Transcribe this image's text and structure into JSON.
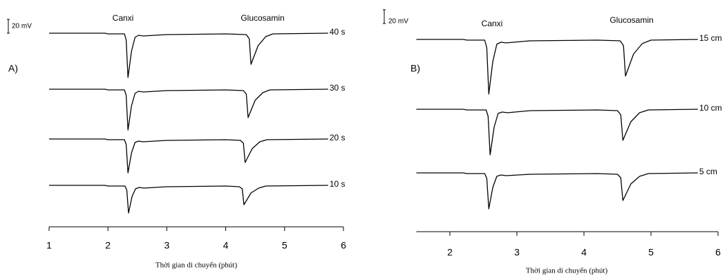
{
  "chart_data": [
    {
      "type": "line",
      "panel_label": "A)",
      "annotations": [
        "Canxi",
        "Glucosamin"
      ],
      "xlabel": "Thời gian di chuyển (phút)",
      "xlim": [
        1,
        6
      ],
      "xticks": [
        1,
        2,
        3,
        4,
        5,
        6
      ],
      "scale_bar": {
        "value": 20,
        "label": "20 mV"
      },
      "color": "#000000",
      "series": [
        {
          "name": "40 s",
          "x": [
            1.0,
            1.95,
            2.0,
            2.28,
            2.31,
            2.34,
            2.4,
            2.46,
            2.52,
            2.6,
            3.0,
            4.0,
            4.35,
            4.4,
            4.43,
            4.55,
            4.68,
            4.8,
            5.74
          ],
          "values": [
            0,
            0,
            -1,
            -1,
            -10,
            -64,
            -26,
            -6,
            -3,
            -4,
            -2,
            -1,
            -2,
            -8,
            -45,
            -18,
            -5,
            -1,
            0
          ]
        },
        {
          "name": "30 s",
          "x": [
            1.0,
            1.95,
            2.0,
            2.28,
            2.31,
            2.34,
            2.4,
            2.46,
            2.52,
            2.6,
            3.0,
            4.0,
            4.3,
            4.35,
            4.38,
            4.5,
            4.63,
            4.75,
            5.74
          ],
          "values": [
            0,
            0,
            -1,
            -1,
            -9,
            -59,
            -24,
            -6,
            -3,
            -4,
            -2,
            -1,
            -2,
            -7,
            -41,
            -16,
            -5,
            -1,
            0
          ]
        },
        {
          "name": "20 s",
          "x": [
            1.0,
            1.95,
            2.0,
            2.28,
            2.31,
            2.34,
            2.4,
            2.46,
            2.52,
            2.6,
            3.0,
            4.0,
            4.25,
            4.3,
            4.33,
            4.45,
            4.58,
            4.7,
            5.74
          ],
          "values": [
            0,
            0,
            -1,
            -1,
            -8,
            -49,
            -20,
            -5,
            -3,
            -4,
            -2,
            -1,
            -2,
            -6,
            -34,
            -14,
            -4,
            -1,
            0
          ]
        },
        {
          "name": "10 s",
          "x": [
            1.0,
            1.95,
            2.0,
            2.29,
            2.32,
            2.35,
            2.41,
            2.47,
            2.53,
            2.61,
            3.0,
            4.0,
            4.23,
            4.28,
            4.31,
            4.43,
            4.56,
            4.68,
            5.74
          ],
          "values": [
            0,
            0,
            -1,
            -1,
            -7,
            -40,
            -16,
            -5,
            -3,
            -4,
            -2,
            -1,
            -2,
            -5,
            -28,
            -11,
            -4,
            -1,
            0
          ]
        }
      ]
    },
    {
      "type": "line",
      "panel_label": "B)",
      "annotations": [
        "Canxi",
        "Glucosamin"
      ],
      "xlabel": "Thời gian di chuyển (phút)",
      "xlim": [
        1.5,
        6
      ],
      "xticks": [
        2,
        3,
        4,
        5,
        6
      ],
      "scale_bar": {
        "value": 20,
        "label": "20 mV"
      },
      "color": "#000000",
      "series": [
        {
          "name": "15 cm",
          "x": [
            1.5,
            2.2,
            2.25,
            2.52,
            2.55,
            2.58,
            2.64,
            2.7,
            2.76,
            2.84,
            3.2,
            4.2,
            4.54,
            4.59,
            4.62,
            4.74,
            4.87,
            5.0,
            5.7
          ],
          "values": [
            0,
            0,
            -1,
            -1,
            -12,
            -79,
            -32,
            -7,
            -4,
            -5,
            -2,
            -1,
            -2,
            -9,
            -53,
            -21,
            -6,
            -1,
            0
          ]
        },
        {
          "name": "10 cm",
          "x": [
            1.5,
            2.2,
            2.25,
            2.54,
            2.57,
            2.6,
            2.66,
            2.72,
            2.78,
            2.86,
            3.2,
            4.2,
            4.5,
            4.55,
            4.58,
            4.7,
            4.83,
            4.96,
            5.7
          ],
          "values": [
            0,
            0,
            -1,
            -1,
            -10,
            -66,
            -26,
            -6,
            -4,
            -5,
            -2,
            -1,
            -2,
            -8,
            -45,
            -18,
            -5,
            -1,
            0
          ]
        },
        {
          "name": "5 cm",
          "x": [
            1.5,
            2.2,
            2.25,
            2.52,
            2.55,
            2.58,
            2.64,
            2.7,
            2.76,
            2.84,
            3.2,
            4.2,
            4.5,
            4.55,
            4.58,
            4.7,
            4.83,
            4.96,
            5.7
          ],
          "values": [
            0,
            0,
            -1,
            -1,
            -8,
            -52,
            -21,
            -5,
            -3,
            -4,
            -2,
            -1,
            -2,
            -7,
            -40,
            -16,
            -5,
            -1,
            0
          ]
        }
      ]
    }
  ]
}
